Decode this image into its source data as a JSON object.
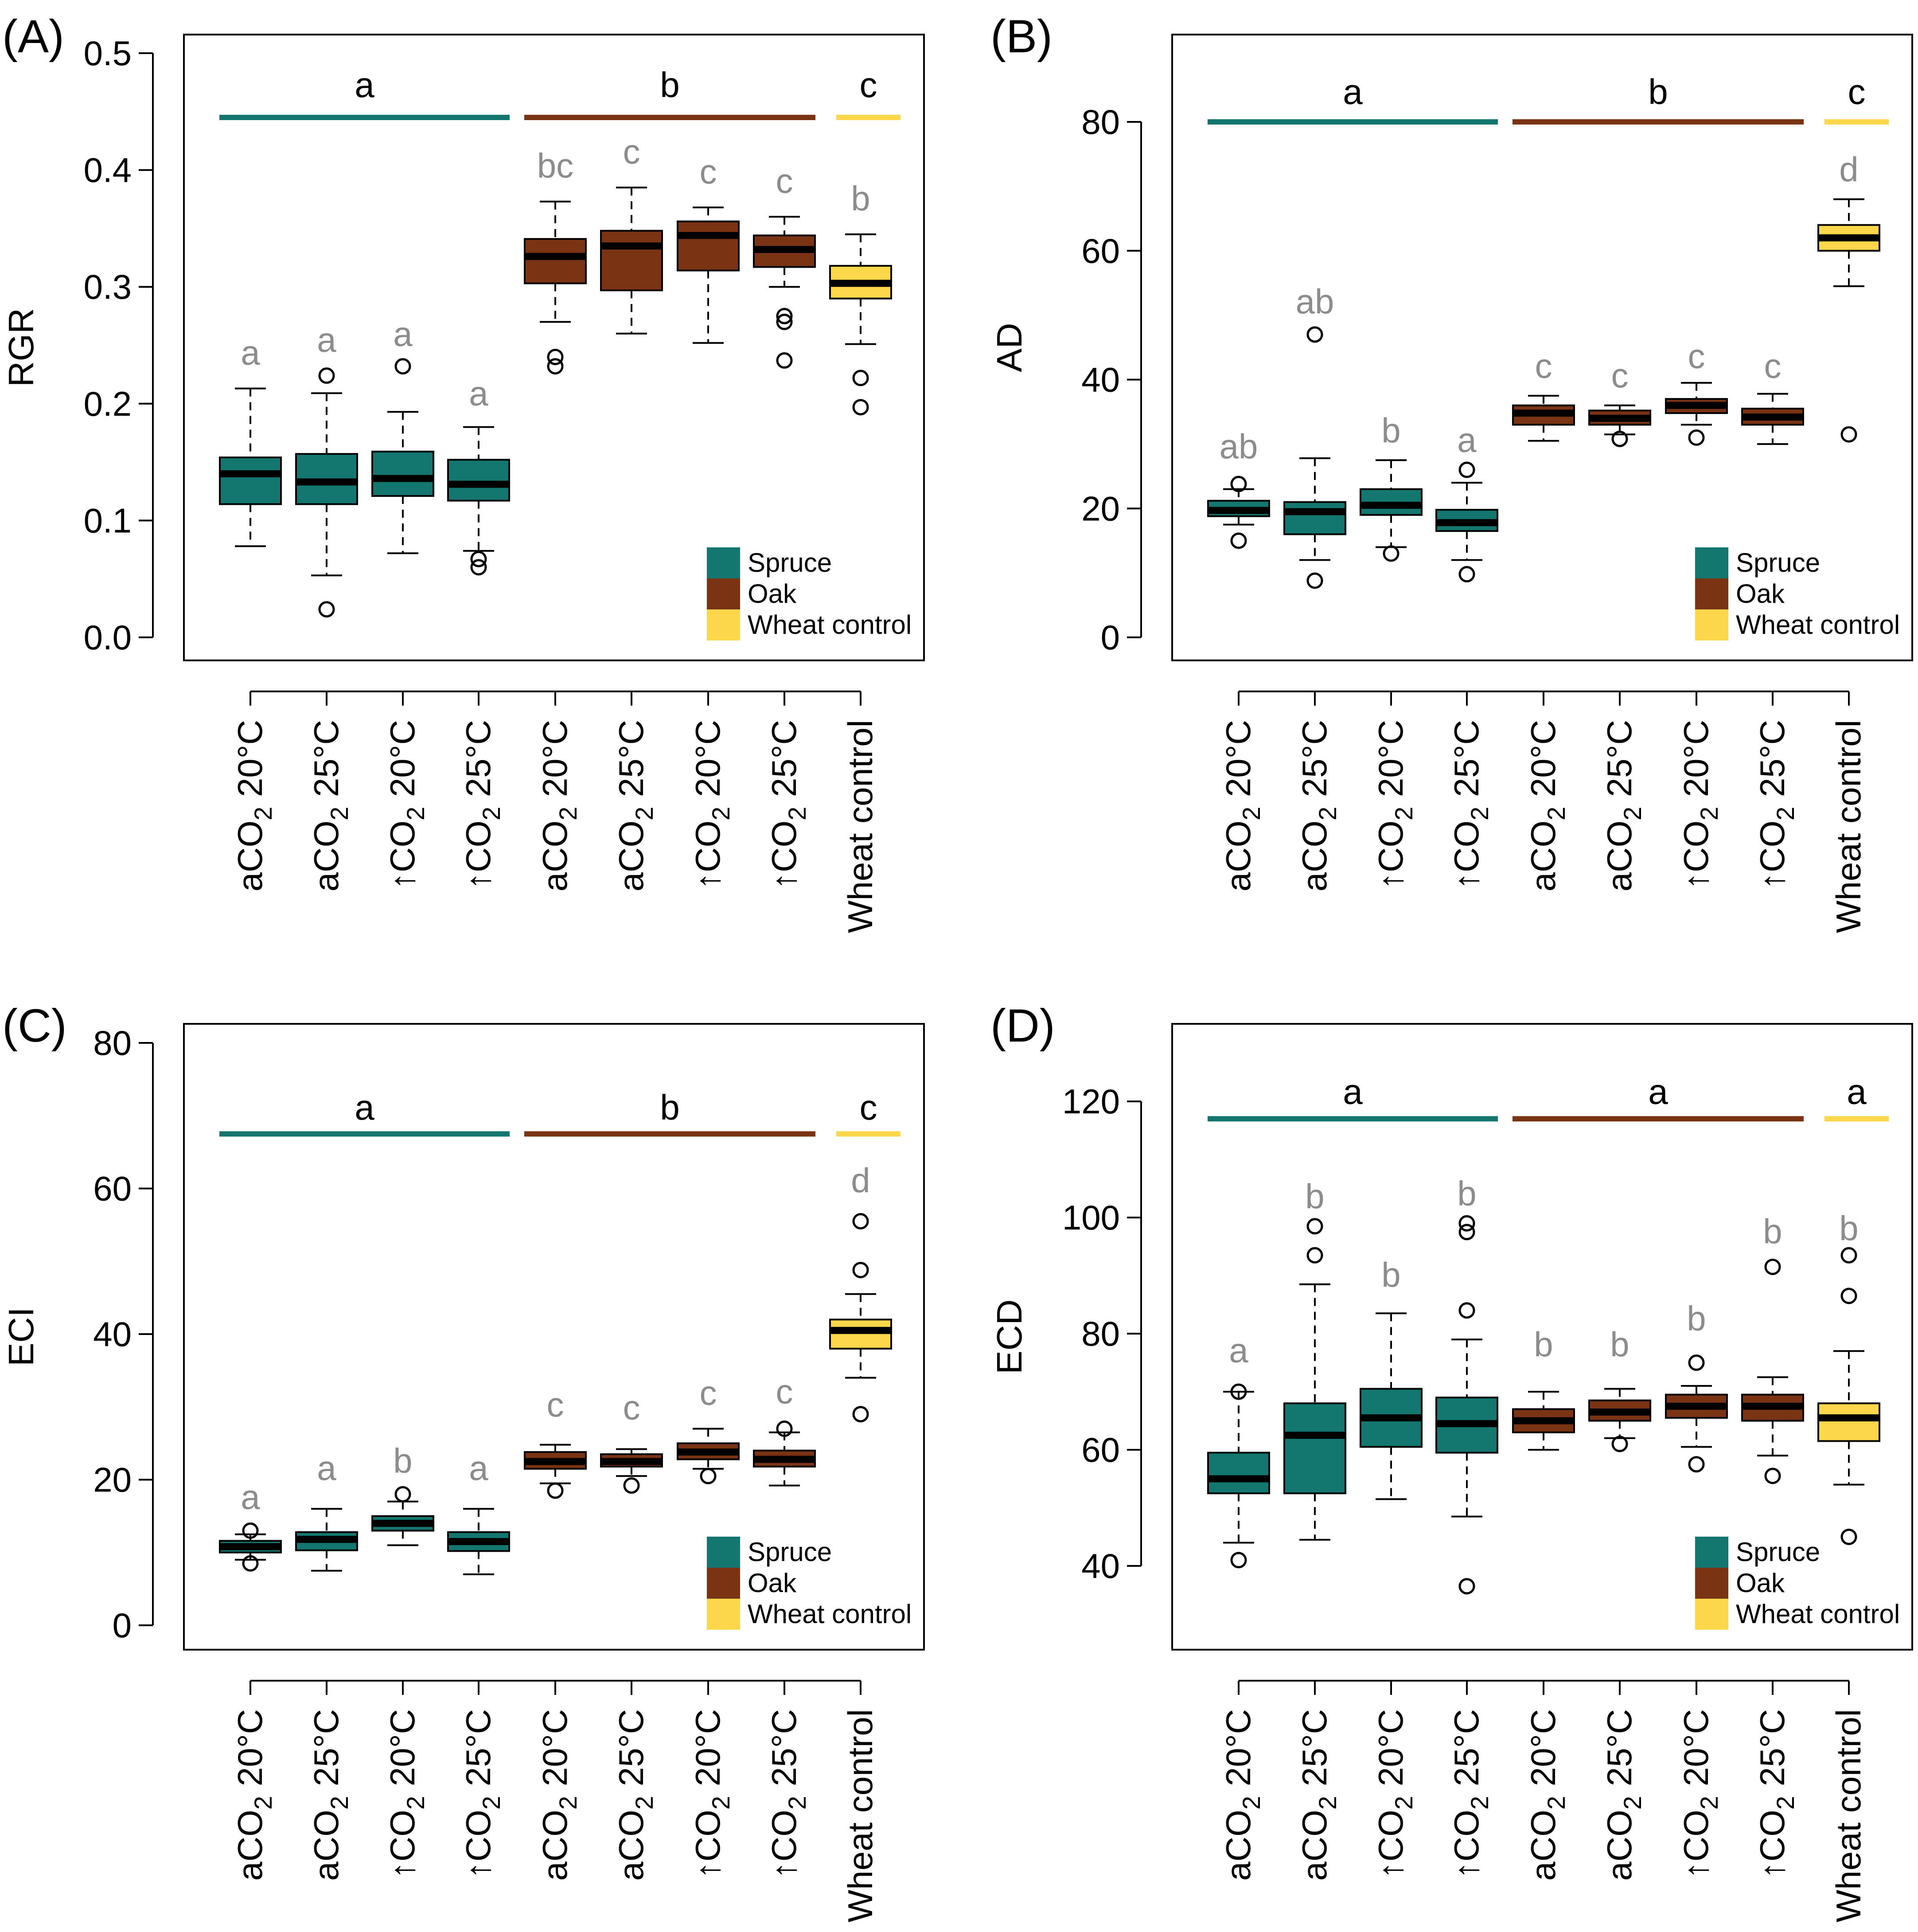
{
  "colors": {
    "spruce": "#13776f",
    "oak": "#7a3413",
    "wheat": "#fcd74b"
  },
  "category_labels": [
    {
      "pre": "aCO",
      "sub": "2",
      "post": " 20°C"
    },
    {
      "pre": "aCO",
      "sub": "2",
      "post": " 25°C"
    },
    {
      "pre": "↑CO",
      "sub": "2",
      "post": " 20°C"
    },
    {
      "pre": "↑CO",
      "sub": "2",
      "post": " 25°C"
    },
    {
      "pre": "aCO",
      "sub": "2",
      "post": " 20°C"
    },
    {
      "pre": "aCO",
      "sub": "2",
      "post": " 25°C"
    },
    {
      "pre": "↑CO",
      "sub": "2",
      "post": " 20°C"
    },
    {
      "pre": "↑CO",
      "sub": "2",
      "post": " 25°C"
    },
    {
      "pre": "Wheat control",
      "sub": "",
      "post": ""
    }
  ],
  "box_species": [
    "spruce",
    "spruce",
    "spruce",
    "spruce",
    "oak",
    "oak",
    "oak",
    "oak",
    "wheat"
  ],
  "legend": [
    {
      "label": "Spruce",
      "color_key": "spruce"
    },
    {
      "label": "Oak",
      "color_key": "oak"
    },
    {
      "label": "Wheat control",
      "color_key": "wheat"
    }
  ],
  "chart_data": [
    {
      "type": "boxplot",
      "panel": "(A)",
      "ylabel": "RGR",
      "ylim": [
        0,
        0.5
      ],
      "yticks": [
        0.0,
        0.1,
        0.2,
        0.3,
        0.4,
        0.5
      ],
      "ytick_labels": [
        "0.0",
        "0.1",
        "0.2",
        "0.3",
        "0.4",
        "0.5"
      ],
      "group_line_value": 0.445,
      "group_letter_value": 0.472,
      "group_letters": [
        "a",
        "b",
        "c"
      ],
      "boxes": [
        {
          "q1": 0.114,
          "median": 0.14,
          "q3": 0.154,
          "low": 0.078,
          "high": 0.213,
          "outliers": [],
          "letter": "a",
          "letter_value": 0.243
        },
        {
          "q1": 0.114,
          "median": 0.133,
          "q3": 0.157,
          "low": 0.053,
          "high": 0.209,
          "outliers": [
            0.224,
            0.024
          ],
          "letter": "a",
          "letter_value": 0.254
        },
        {
          "q1": 0.121,
          "median": 0.136,
          "q3": 0.159,
          "low": 0.072,
          "high": 0.193,
          "outliers": [
            0.232
          ],
          "letter": "a",
          "letter_value": 0.259
        },
        {
          "q1": 0.117,
          "median": 0.131,
          "q3": 0.152,
          "low": 0.074,
          "high": 0.18,
          "outliers": [
            0.067,
            0.06
          ],
          "letter": "a",
          "letter_value": 0.208
        },
        {
          "q1": 0.303,
          "median": 0.326,
          "q3": 0.341,
          "low": 0.27,
          "high": 0.373,
          "outliers": [
            0.24,
            0.232
          ],
          "letter": "bc",
          "letter_value": 0.403
        },
        {
          "q1": 0.297,
          "median": 0.335,
          "q3": 0.348,
          "low": 0.26,
          "high": 0.385,
          "outliers": [],
          "letter": "c",
          "letter_value": 0.415
        },
        {
          "q1": 0.314,
          "median": 0.344,
          "q3": 0.356,
          "low": 0.252,
          "high": 0.368,
          "outliers": [],
          "letter": "c",
          "letter_value": 0.398
        },
        {
          "q1": 0.317,
          "median": 0.332,
          "q3": 0.344,
          "low": 0.3,
          "high": 0.36,
          "outliers": [
            0.275,
            0.27,
            0.237
          ],
          "letter": "c",
          "letter_value": 0.39
        },
        {
          "q1": 0.29,
          "median": 0.303,
          "q3": 0.318,
          "low": 0.251,
          "high": 0.345,
          "outliers": [
            0.222,
            0.197
          ],
          "letter": "b",
          "letter_value": 0.375
        }
      ]
    },
    {
      "type": "boxplot",
      "panel": "(B)",
      "ylabel": "AD",
      "ylim": [
        0,
        80
      ],
      "yticks": [
        0,
        20,
        40,
        60,
        80
      ],
      "ytick_labels": [
        "0",
        "20",
        "40",
        "60",
        "80"
      ],
      "group_line_value": 80,
      "group_letter_value": 84.5,
      "group_letters": [
        "a",
        "b",
        "c"
      ],
      "boxes": [
        {
          "q1": 18.8,
          "median": 19.7,
          "q3": 21.2,
          "low": 17.5,
          "high": 23.0,
          "outliers": [
            23.8,
            15.0
          ],
          "letter": "ab",
          "letter_value": 29.5
        },
        {
          "q1": 16.0,
          "median": 19.5,
          "q3": 21.0,
          "low": 12.0,
          "high": 27.8,
          "outliers": [
            47.0,
            8.8
          ],
          "letter": "ab",
          "letter_value": 52.0
        },
        {
          "q1": 19.0,
          "median": 20.5,
          "q3": 23.0,
          "low": 14.0,
          "high": 27.5,
          "outliers": [
            13.0
          ],
          "letter": "b",
          "letter_value": 32.0
        },
        {
          "q1": 16.5,
          "median": 17.8,
          "q3": 19.8,
          "low": 12.0,
          "high": 24.0,
          "outliers": [
            26.0,
            9.8
          ],
          "letter": "a",
          "letter_value": 30.5
        },
        {
          "q1": 33.0,
          "median": 34.8,
          "q3": 36.0,
          "low": 30.5,
          "high": 37.5,
          "outliers": [],
          "letter": "c",
          "letter_value": 42.0
        },
        {
          "q1": 33.0,
          "median": 34.0,
          "q3": 35.2,
          "low": 31.5,
          "high": 36.0,
          "outliers": [
            30.8
          ],
          "letter": "c",
          "letter_value": 40.5
        },
        {
          "q1": 34.8,
          "median": 36.0,
          "q3": 37.0,
          "low": 33.0,
          "high": 39.5,
          "outliers": [
            31.0
          ],
          "letter": "c",
          "letter_value": 43.5
        },
        {
          "q1": 33.0,
          "median": 34.2,
          "q3": 35.5,
          "low": 30.0,
          "high": 37.8,
          "outliers": [],
          "letter": "c",
          "letter_value": 42.0
        },
        {
          "q1": 60.0,
          "median": 62.0,
          "q3": 64.0,
          "low": 54.5,
          "high": 68.0,
          "outliers": [
            31.5
          ],
          "letter": "d",
          "letter_value": 72.5
        }
      ]
    },
    {
      "type": "boxplot",
      "panel": "(C)",
      "ylabel": "ECI",
      "ylim": [
        0,
        80
      ],
      "yticks": [
        0,
        20,
        40,
        60,
        80
      ],
      "ytick_labels": [
        "0",
        "20",
        "40",
        "60",
        "80"
      ],
      "group_line_value": 67.5,
      "group_letter_value": 71.0,
      "group_letters": [
        "a",
        "b",
        "c"
      ],
      "boxes": [
        {
          "q1": 10.0,
          "median": 10.8,
          "q3": 11.6,
          "low": 9.0,
          "high": 12.5,
          "outliers": [
            13.0,
            8.5
          ],
          "letter": "a",
          "letter_value": 17.5
        },
        {
          "q1": 10.3,
          "median": 11.8,
          "q3": 12.8,
          "low": 7.5,
          "high": 16.0,
          "outliers": [],
          "letter": "a",
          "letter_value": 21.5
        },
        {
          "q1": 13.0,
          "median": 14.0,
          "q3": 15.0,
          "low": 11.0,
          "high": 17.0,
          "outliers": [
            18.0
          ],
          "letter": "b",
          "letter_value": 22.5
        },
        {
          "q1": 10.2,
          "median": 11.5,
          "q3": 12.8,
          "low": 7.0,
          "high": 16.0,
          "outliers": [],
          "letter": "a",
          "letter_value": 21.5
        },
        {
          "q1": 21.5,
          "median": 22.5,
          "q3": 23.8,
          "low": 19.5,
          "high": 24.8,
          "outliers": [
            18.5
          ],
          "letter": "c",
          "letter_value": 30.2
        },
        {
          "q1": 21.8,
          "median": 22.5,
          "q3": 23.5,
          "low": 20.5,
          "high": 24.2,
          "outliers": [
            19.2
          ],
          "letter": "c",
          "letter_value": 29.8
        },
        {
          "q1": 22.8,
          "median": 23.8,
          "q3": 25.0,
          "low": 21.5,
          "high": 27.0,
          "outliers": [
            20.5
          ],
          "letter": "c",
          "letter_value": 31.8
        },
        {
          "q1": 21.8,
          "median": 22.8,
          "q3": 24.0,
          "low": 19.2,
          "high": 26.5,
          "outliers": [
            27.0
          ],
          "letter": "c",
          "letter_value": 32.0
        },
        {
          "q1": 38.0,
          "median": 40.5,
          "q3": 42.0,
          "low": 34.0,
          "high": 45.5,
          "outliers": [
            55.5,
            48.8,
            29.0
          ],
          "letter": "d",
          "letter_value": 61.0
        }
      ]
    },
    {
      "type": "boxplot",
      "panel": "(D)",
      "ylabel": "ECD",
      "ylim": [
        40,
        120
      ],
      "yticks": [
        40,
        60,
        80,
        100,
        120
      ],
      "ytick_labels": [
        "40",
        "60",
        "80",
        "100",
        "120"
      ],
      "y_axis_min": 30,
      "group_line_value": 117,
      "group_letter_value": 121.5,
      "group_letters": [
        "a",
        "a",
        "a"
      ],
      "boxes": [
        {
          "q1": 52.5,
          "median": 55.0,
          "q3": 59.5,
          "low": 44.0,
          "high": 70.0,
          "outliers": [
            70.0,
            41.0
          ],
          "letter": "a",
          "letter_value": 77.0
        },
        {
          "q1": 52.5,
          "median": 62.5,
          "q3": 68.0,
          "low": 44.5,
          "high": 88.5,
          "outliers": [
            98.5,
            93.5
          ],
          "letter": "b",
          "letter_value": 103.5
        },
        {
          "q1": 60.5,
          "median": 65.5,
          "q3": 70.5,
          "low": 51.5,
          "high": 83.5,
          "outliers": [],
          "letter": "b",
          "letter_value": 90.0
        },
        {
          "q1": 59.5,
          "median": 64.5,
          "q3": 69.0,
          "low": 48.5,
          "high": 79.0,
          "outliers": [
            99.0,
            97.5,
            84.0,
            36.5
          ],
          "letter": "b",
          "letter_value": 104.0
        },
        {
          "q1": 63.0,
          "median": 65.0,
          "q3": 67.0,
          "low": 60.0,
          "high": 70.0,
          "outliers": [],
          "letter": "b",
          "letter_value": 78.0
        },
        {
          "q1": 65.0,
          "median": 66.5,
          "q3": 68.5,
          "low": 62.0,
          "high": 70.5,
          "outliers": [
            61.0
          ],
          "letter": "b",
          "letter_value": 78.0
        },
        {
          "q1": 65.5,
          "median": 67.5,
          "q3": 69.5,
          "low": 60.5,
          "high": 71.0,
          "outliers": [
            75.0,
            57.5
          ],
          "letter": "b",
          "letter_value": 82.5
        },
        {
          "q1": 65.0,
          "median": 67.5,
          "q3": 69.5,
          "low": 59.0,
          "high": 72.5,
          "outliers": [
            91.5,
            55.5
          ],
          "letter": "b",
          "letter_value": 97.5
        },
        {
          "q1": 61.5,
          "median": 65.5,
          "q3": 68.0,
          "low": 54.0,
          "high": 77.0,
          "outliers": [
            93.5,
            86.5,
            45.0
          ],
          "letter": "b",
          "letter_value": 98.0
        }
      ]
    }
  ]
}
